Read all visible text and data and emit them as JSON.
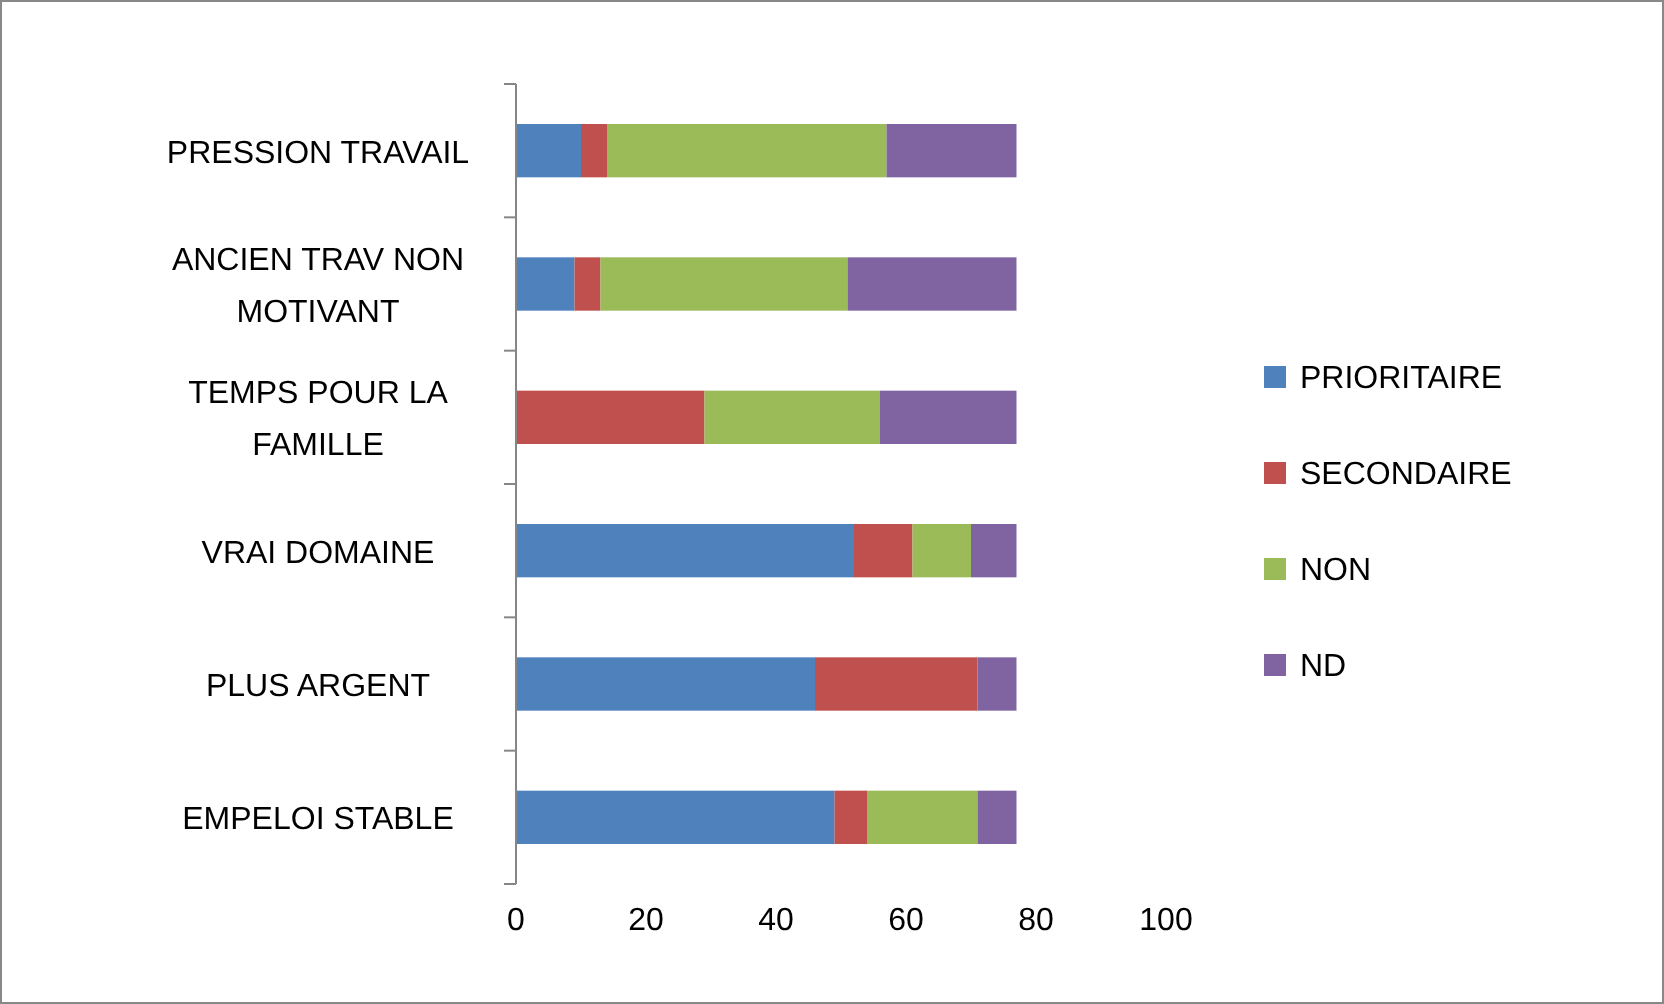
{
  "chart_data": {
    "type": "bar",
    "orientation": "horizontal",
    "stacked": true,
    "categories": [
      "PRESSION TRAVAIL",
      "ANCIEN TRAV NON MOTIVANT",
      "TEMPS POUR LA FAMILLE",
      "VRAI DOMAINE",
      "PLUS ARGENT",
      "EMPELOI STABLE"
    ],
    "series": [
      {
        "name": "PRIORITAIRE",
        "color": "#4f81bd",
        "values": [
          10,
          9,
          0,
          52,
          46,
          49
        ]
      },
      {
        "name": "SECONDAIRE",
        "color": "#c0504d",
        "values": [
          4,
          4,
          29,
          9,
          25,
          5
        ]
      },
      {
        "name": "NON",
        "color": "#9bbb59",
        "values": [
          43,
          38,
          27,
          9,
          0,
          17
        ]
      },
      {
        "name": "ND",
        "color": "#8064a2",
        "values": [
          20,
          26,
          21,
          7,
          6,
          6
        ]
      }
    ],
    "xlim": [
      0,
      100
    ],
    "xticks": [
      0,
      20,
      40,
      60,
      80,
      100
    ],
    "grid": false,
    "legend": "right"
  }
}
